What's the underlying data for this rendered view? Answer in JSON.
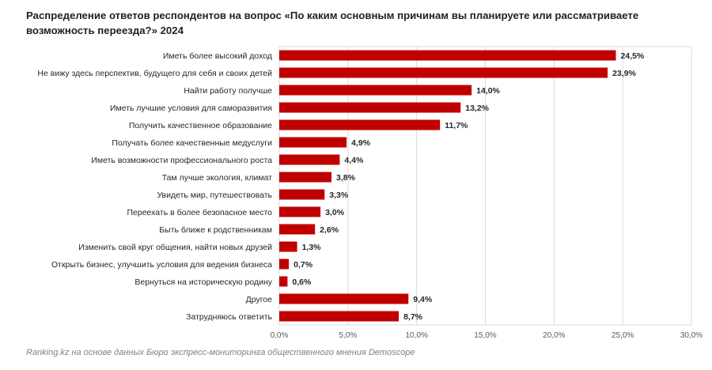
{
  "title": "Распределение ответов респондентов на вопрос «По каким основным причинам вы планируете или рассматриваете возможность переезда?» 2024",
  "source": "Ranking.kz на основе данных Бюро экспресс-мониторинга общественного мнения Demoscope",
  "colors": {
    "bar": "#c00000",
    "grid": "#d9d9d9",
    "text": "#262626"
  },
  "chart_data": {
    "type": "bar",
    "orientation": "horizontal",
    "title": "Распределение ответов респондентов на вопрос «По каким основным причинам вы планируете или рассматриваете возможность переезда?» 2024",
    "categories": [
      "Иметь более высокий доход",
      "Не вижу здесь перспектив, будущего для себя и своих детей",
      "Найти работу получше",
      "Иметь лучшие условия для саморазвития",
      "Получить качественное образование",
      "Получать более качественные медуслуги",
      "Иметь возможности профессионального роста",
      "Там лучше экология, климат",
      "Увидеть мир, путешествовать",
      "Переехать в более безопасное место",
      "Быть ближе к родственникам",
      "Изменить свой круг общения, найти новых друзей",
      "Открыть бизнес, улучшить условия для ведения бизнеса",
      "Вернуться на историческую родину",
      "Другое",
      "Затрудняюсь ответить"
    ],
    "values": [
      24.5,
      23.9,
      14.0,
      13.2,
      11.7,
      4.9,
      4.4,
      3.8,
      3.3,
      3.0,
      2.6,
      1.3,
      0.7,
      0.6,
      9.4,
      8.7
    ],
    "value_labels": [
      "24,5%",
      "23,9%",
      "14,0%",
      "13,2%",
      "11,7%",
      "4,9%",
      "4,4%",
      "3,8%",
      "3,3%",
      "3,0%",
      "2,6%",
      "1,3%",
      "0,7%",
      "0,6%",
      "9,4%",
      "8,7%"
    ],
    "xlim": [
      0,
      30
    ],
    "x_ticks": [
      0,
      5,
      10,
      15,
      20,
      25,
      30
    ],
    "x_tick_labels": [
      "0,0%",
      "5,0%",
      "10,0%",
      "15,0%",
      "20,0%",
      "25,0%",
      "30,0%"
    ],
    "grid": true,
    "legend": "none"
  }
}
